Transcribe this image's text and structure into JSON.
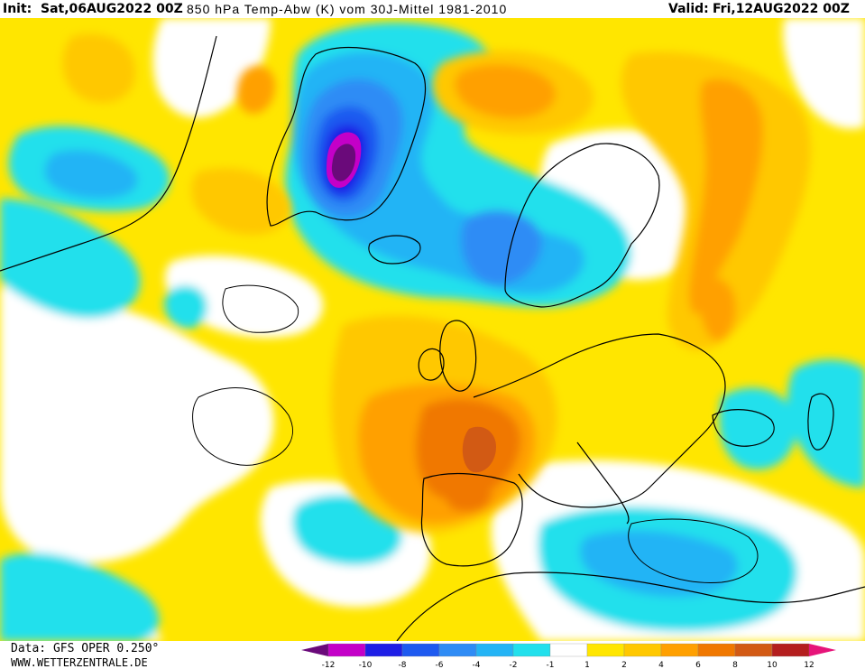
{
  "header": {
    "init_label": "Init:",
    "init_value": "Sat,06AUG2022 00Z",
    "title": "850 hPa Temp-Abw (K) vom 30J-Mittel 1981-2010",
    "valid_label": "Valid:",
    "valid_value": "Fri,12AUG2022 00Z"
  },
  "footer": {
    "data_source": "Data: GFS OPER 0.250°",
    "website": "WWW.WETTERZENTRALE.DE"
  },
  "legend": {
    "ticks": [
      "-12",
      "-10",
      "-8",
      "-6",
      "-4",
      "-2",
      "-1",
      "1",
      "2",
      "4",
      "6",
      "8",
      "10",
      "12"
    ],
    "colors": [
      "#6a0a7a",
      "#c400c8",
      "#1e1ee6",
      "#1e5af0",
      "#2f8cf5",
      "#24b4f5",
      "#22e0ec",
      "#ffffff",
      "#ffe600",
      "#ffc800",
      "#ffa000",
      "#f07800",
      "#d25a14",
      "#b41e1e",
      "#e6147a"
    ]
  },
  "colors": {
    "land_outline": "#000000",
    "background": "#ffffff"
  }
}
